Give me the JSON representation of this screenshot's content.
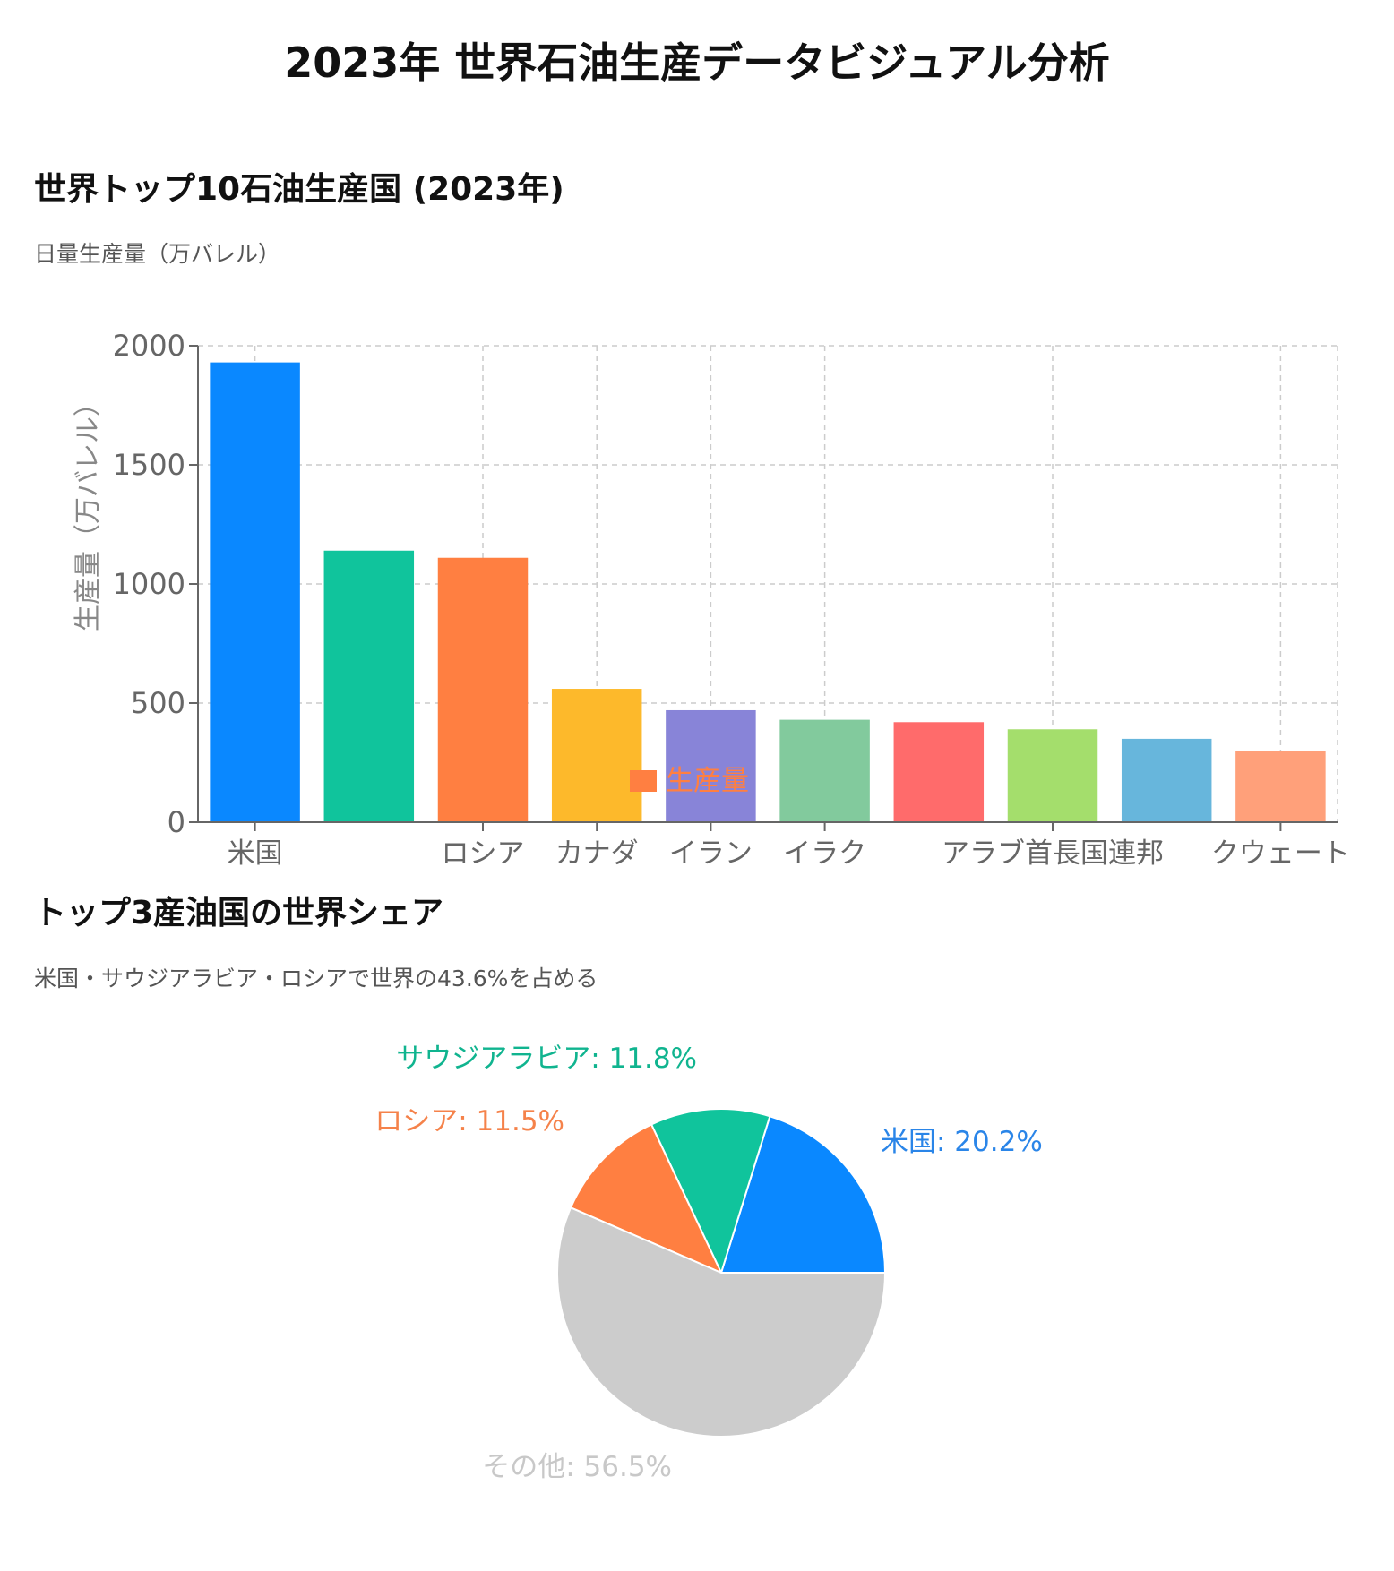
{
  "page": {
    "title": "2023年 世界石油生産データビジュアル分析"
  },
  "chart_data": [
    {
      "type": "bar",
      "title": "世界トップ10石油生産国 (2023年)",
      "subtitle": "日量生産量（万バレル）",
      "ylabel": "生産量（万バレル）",
      "xlabel": "",
      "ylim": [
        0,
        2000
      ],
      "yticks": [
        "0",
        "500",
        "1000",
        "1500",
        "2000"
      ],
      "grid": true,
      "legend": {
        "label": "生産量",
        "color": "#ff7f41",
        "position": "bottom"
      },
      "categories": [
        "米国",
        "",
        "ロシア",
        "カナダ",
        "イラン",
        "イラク",
        "",
        "アラブ首長国連邦",
        "",
        "クウェート"
      ],
      "values": [
        1930,
        1140,
        1110,
        560,
        470,
        430,
        420,
        390,
        350,
        300
      ],
      "colors": [
        "#0a88ff",
        "#10c49c",
        "#ff7f41",
        "#fdb92b",
        "#8884d8",
        "#82ca9d",
        "#ff6b6b",
        "#a4de6c",
        "#67b6dc",
        "#ffa07a"
      ]
    },
    {
      "type": "pie",
      "title": "トップ3産油国の世界シェア",
      "subtitle": "米国・サウジアラビア・ロシアで世界の43.6%を占める",
      "slices": [
        {
          "label": "米国: 20.2%",
          "value": 20.2,
          "color": "#0a88ff",
          "text_color": "#2a85e8"
        },
        {
          "label": "サウジアラビア: 11.8%",
          "value": 11.8,
          "color": "#10c49c",
          "text_color": "#10b48f"
        },
        {
          "label": "ロシア: 11.5%",
          "value": 11.5,
          "color": "#ff7f41",
          "text_color": "#f5824a"
        },
        {
          "label": "その他: 56.5%",
          "value": 56.5,
          "color": "#cccccc",
          "text_color": "#c8c8c8"
        }
      ]
    }
  ]
}
